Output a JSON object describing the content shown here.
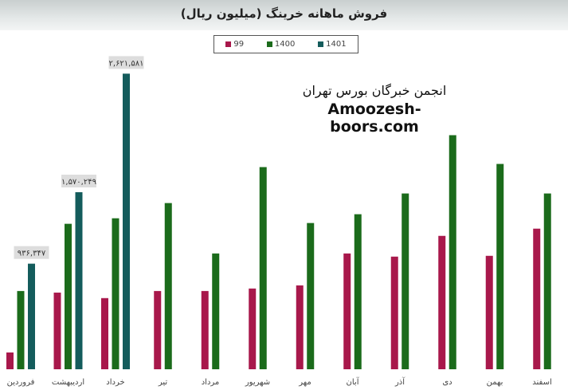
{
  "chart_data": {
    "type": "bar",
    "title": "فروش ماهانه خرینگ (میلیون ریال)",
    "categories": [
      "فروردین",
      "اردیبهشت",
      "خرداد",
      "تیر",
      "مرداد",
      "شهریور",
      "مهر",
      "آبان",
      "آذر",
      "دی",
      "بهمن",
      "اسفند"
    ],
    "series": [
      {
        "name": "99",
        "color": "#a8184b",
        "values": [
          149000,
          680000,
          631000,
          694000,
          694000,
          716000,
          744000,
          1027000,
          999000,
          1183000,
          1006000,
          1247000
        ]
      },
      {
        "name": "1400",
        "color": "#1b6b1b",
        "values": [
          694000,
          1290000,
          1339000,
          1474000,
          1027000,
          1793000,
          1297000,
          1375000,
          1559000,
          2076000,
          1821000,
          1559000
        ]
      },
      {
        "name": "1401",
        "color": "#145c5c",
        "values": [
          936347,
          1570249,
          2621581,
          null,
          null,
          null,
          null,
          null,
          null,
          null,
          null,
          null
        ]
      }
    ],
    "data_labels": [
      "۹۳۶,۳۴۷",
      "۱,۵۷۰,۲۴۹",
      "۲,۶۲۱,۵۸۱"
    ],
    "ylim": [
      0,
      2900000
    ],
    "grid": false,
    "legend_position": "top-center",
    "xlabel": "",
    "ylabel": ""
  },
  "watermark": {
    "line1": "انجمن خبرگان بورس تهران",
    "line2": "Amoozesh-boors.com"
  }
}
